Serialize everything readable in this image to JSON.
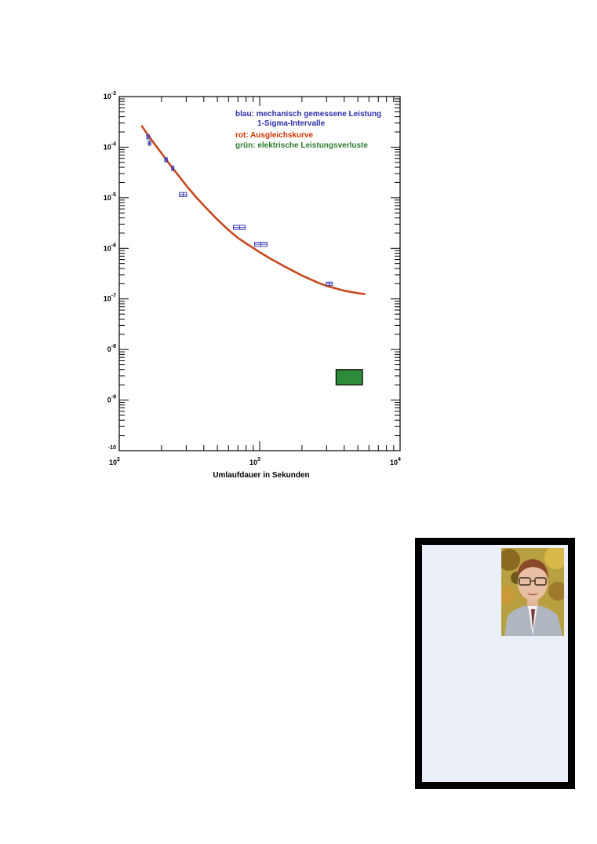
{
  "chart_data": {
    "type": "scatter",
    "x_scale": "log",
    "y_scale": "log",
    "xlim": [
      100,
      10000
    ],
    "ylim": [
      1e-10,
      0.001
    ],
    "xlabel": "Umlaufdauer in Sekunden",
    "ylabel": "",
    "x_ticks": [
      {
        "value": 100,
        "base": "10",
        "exp": "2"
      },
      {
        "value": 1000,
        "base": "10",
        "exp": "3"
      },
      {
        "value": 10000,
        "base": "10",
        "exp": "4"
      }
    ],
    "y_ticks": [
      {
        "value": 0.001,
        "base": "10",
        "exp": "-3"
      },
      {
        "value": 0.0001,
        "base": "10",
        "exp": "-4"
      },
      {
        "value": 1e-05,
        "base": "10",
        "exp": "-5"
      },
      {
        "value": 1e-06,
        "base": "10",
        "exp": "-6"
      },
      {
        "value": 1e-07,
        "base": "10",
        "exp": "-7"
      },
      {
        "value": 1e-08,
        "base": "0",
        "exp": "-8"
      },
      {
        "value": 1e-09,
        "base": "0",
        "exp": "-9"
      },
      {
        "value": 1e-10,
        "base": "",
        "exp": "-10"
      }
    ],
    "legend": {
      "placement": "top-right",
      "entries": [
        {
          "prefix": "blau:",
          "text": "mechanisch gemessene Leistung",
          "color": "#2e2eaa"
        },
        {
          "prefix": "",
          "text": "1-Sigma-Intervalle",
          "color": "#2e2eaa"
        },
        {
          "prefix": "rot:",
          "text": "Ausgleichskurve",
          "color": "#cc3300"
        },
        {
          "prefix": "grün:",
          "text": "elektrische Leistungsverluste",
          "color": "#2a7a2a"
        }
      ]
    },
    "series": [
      {
        "kind": "measured",
        "color": "#3b3bb0",
        "points": [
          {
            "x": 160,
            "y": 0.00016,
            "x_low": 157,
            "x_high": 164,
            "y_low": 0.000145,
            "y_high": 0.000175
          },
          {
            "x": 164,
            "y": 0.00012,
            "x_low": 161,
            "x_high": 168,
            "y_low": 0.000109,
            "y_high": 0.000132
          },
          {
            "x": 215,
            "y": 5.6e-05,
            "x_low": 211,
            "x_high": 220,
            "y_low": 5.1e-05,
            "y_high": 6.2e-05
          },
          {
            "x": 240,
            "y": 3.8e-05,
            "x_low": 236,
            "x_high": 245,
            "y_low": 3.45e-05,
            "y_high": 4.2e-05
          },
          {
            "x": 285,
            "y": 1.15e-05,
            "x_low": 268,
            "x_high": 302,
            "y_low": 1.05e-05,
            "y_high": 1.27e-05
          },
          {
            "x": 720,
            "y": 2.6e-06,
            "x_low": 650,
            "x_high": 790,
            "y_low": 2.37e-06,
            "y_high": 2.85e-06
          },
          {
            "x": 1020,
            "y": 1.2e-06,
            "x_low": 920,
            "x_high": 1130,
            "y_low": 1.09e-06,
            "y_high": 1.32e-06
          },
          {
            "x": 3130,
            "y": 2e-07,
            "x_low": 2980,
            "x_high": 3300,
            "y_low": 1.85e-07,
            "y_high": 2.15e-07
          }
        ]
      },
      {
        "kind": "fit",
        "color": "#c64a1e",
        "x": [
          145,
          160,
          180,
          200,
          230,
          260,
          300,
          350,
          400,
          500,
          600,
          700,
          800,
          1000,
          1200,
          1500,
          2000,
          2500,
          3000,
          4000,
          5000,
          5600
        ],
        "y": [
          0.00026,
          0.000175,
          0.000112,
          7.6e-05,
          4.5e-05,
          2.9e-05,
          1.75e-05,
          1.05e-05,
          7e-06,
          3.7e-06,
          2.3e-06,
          1.6e-06,
          1.25e-06,
          8.4e-07,
          6.2e-07,
          4.4e-07,
          2.9e-07,
          2.2e-07,
          1.8e-07,
          1.45e-07,
          1.3e-07,
          1.25e-07
        ]
      },
      {
        "kind": "electrical",
        "color": "#2e8b3a",
        "box": {
          "x_low": 3500,
          "x_high": 5400,
          "y_low": 2e-09,
          "y_high": 4e-09
        }
      }
    ]
  }
}
